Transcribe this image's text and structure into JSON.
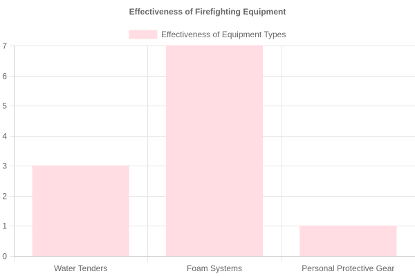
{
  "chart_data": {
    "type": "bar",
    "title": "Effectiveness of Firefighting Equipment",
    "xlabel": "",
    "ylabel": "",
    "categories": [
      "Water Tenders",
      "Foam Systems",
      "Personal Protective Gear"
    ],
    "series": [
      {
        "name": "Effectiveness of Equipment Types",
        "values": [
          3,
          7,
          1
        ],
        "color": "#ffdde3",
        "border_color": "#ffdde3"
      }
    ],
    "ylim": [
      0,
      7
    ],
    "yticks": [
      "0",
      "1",
      "2",
      "3",
      "4",
      "5",
      "6",
      "7"
    ],
    "grid": true,
    "legend_position": "top"
  }
}
